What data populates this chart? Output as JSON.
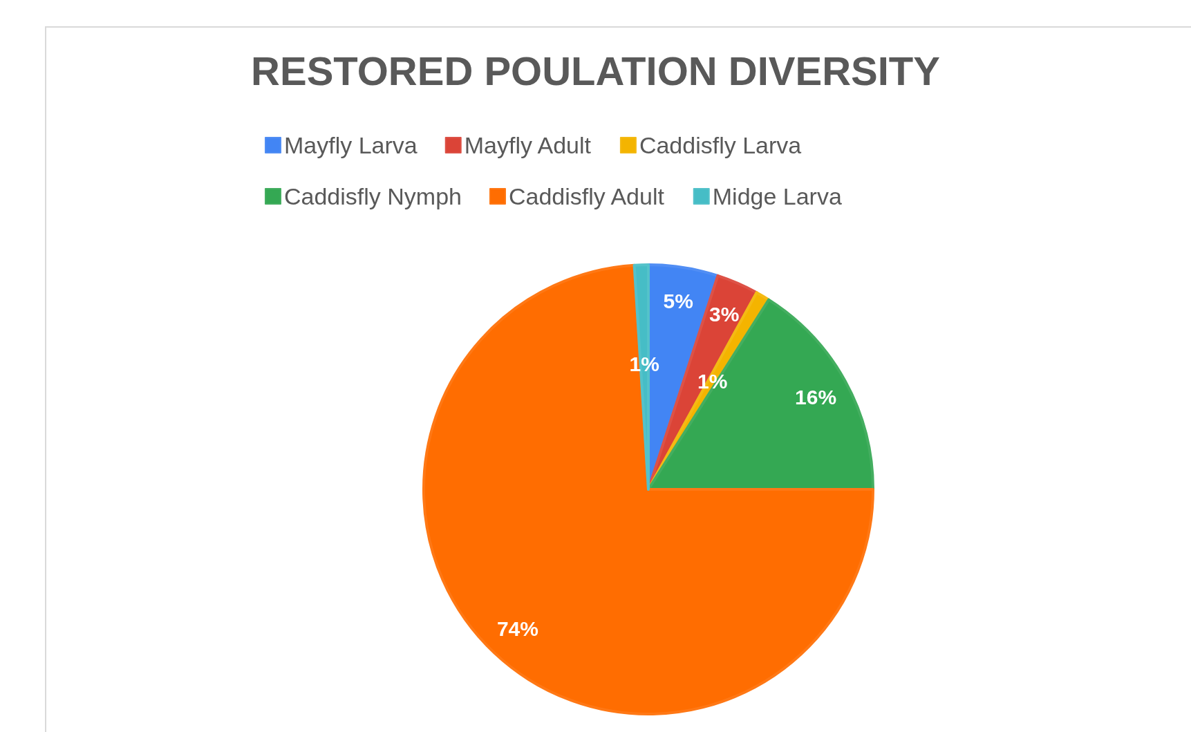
{
  "chart_data": {
    "type": "pie",
    "title": "RESTORED POULATION DIVERSITY",
    "categories": [
      "Mayfly Larva",
      "Mayfly Adult",
      "Caddisfly Larva",
      "Caddisfly Nymph",
      "Caddisfly Adult",
      "Midge Larva"
    ],
    "values": [
      5,
      3,
      1,
      16,
      74,
      1
    ],
    "colors": [
      "#4285f4",
      "#db4437",
      "#f4b400",
      "#34a853",
      "#ff6d01",
      "#46bdc6"
    ],
    "value_labels": [
      "5%",
      "3%",
      "1%",
      "16%",
      "74%",
      "1%"
    ],
    "legend": "top"
  }
}
